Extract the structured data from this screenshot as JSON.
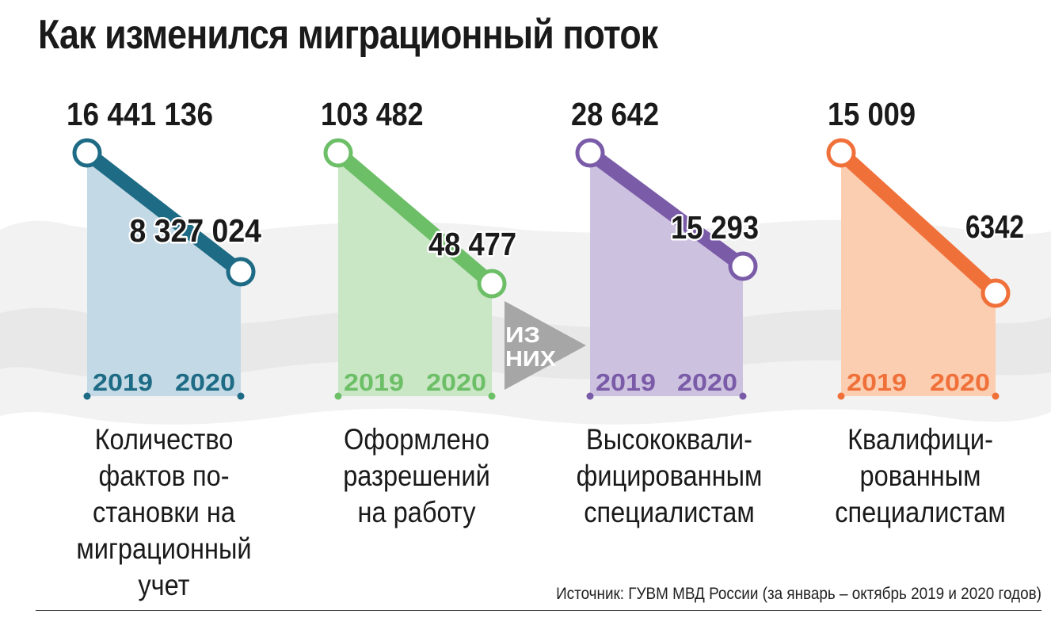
{
  "title": "Как изменился миграционный поток",
  "connector": {
    "line1": "ИЗ",
    "line2": "НИХ"
  },
  "source": "Источник: ГУВМ МВД России (за январь – октябрь 2019 и 2020 годов)",
  "chart_data": {
    "type": "line",
    "title": "Как изменился миграционный поток",
    "categories": [
      "2019",
      "2020"
    ],
    "series": [
      {
        "name": "Количество фактов постановки на миграционный учет",
        "values": [
          16441136,
          8327024
        ],
        "labels": [
          "16 441 136",
          "8 327 024"
        ],
        "color": "#1d6b85",
        "fill": "#c3d9e5",
        "desc_lines": [
          "Количество",
          "фактов по-",
          "становки на",
          "миграционный",
          "учет"
        ]
      },
      {
        "name": "Оформлено разрешений на работу",
        "values": [
          103482,
          48477
        ],
        "labels": [
          "103 482",
          "48 477"
        ],
        "color": "#6dbf67",
        "fill": "#c9e6c5",
        "desc_lines": [
          "Оформлено",
          "разрешений",
          "на работу"
        ]
      },
      {
        "name": "Высококвалифицированным специалистам",
        "values": [
          28642,
          15293
        ],
        "labels": [
          "28 642",
          "15 293"
        ],
        "color": "#7a5ba8",
        "fill": "#cdc1e0",
        "desc_lines": [
          "Высококвали-",
          "фицированным",
          "специалистам"
        ]
      },
      {
        "name": "Квалифицированным специалистам",
        "values": [
          15009,
          6342
        ],
        "labels": [
          "15 009",
          "6342"
        ],
        "color": "#f07039",
        "fill": "#fbcdb1",
        "desc_lines": [
          "Квалифици-",
          "рованным",
          "специалистам"
        ]
      }
    ]
  }
}
